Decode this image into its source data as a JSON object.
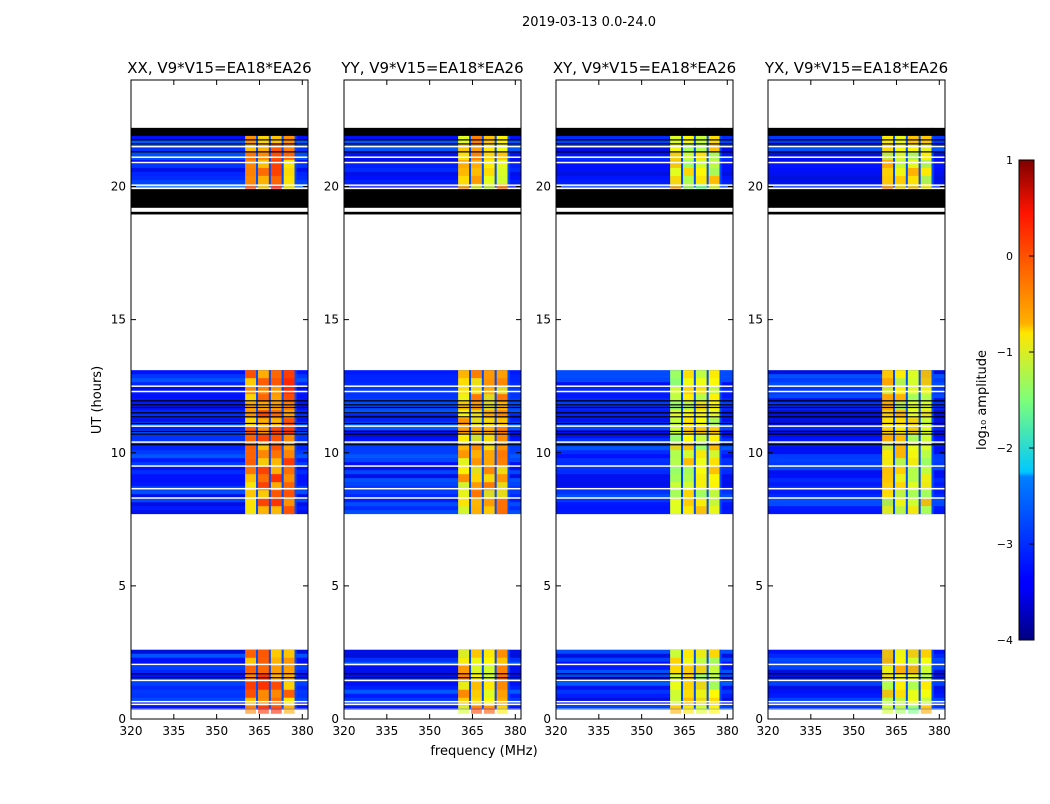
{
  "chart_data": {
    "type": "heatmap",
    "suptitle": "2019-03-13 0.0-24.0",
    "xlabel": "frequency (MHz)",
    "ylabel": "UT (hours)",
    "xlim": [
      320,
      382
    ],
    "ylim": [
      0,
      24
    ],
    "xticks": [
      320,
      335,
      350,
      365,
      380
    ],
    "yticks": [
      0,
      5,
      10,
      15,
      20
    ],
    "panels": [
      {
        "title": "XX, V9*V15=EA18*EA26",
        "band_freq": [
          360,
          378
        ],
        "band_level": -0.3
      },
      {
        "title": "YY, V9*V15=EA18*EA26",
        "band_freq": [
          360,
          378
        ],
        "band_level": -0.6
      },
      {
        "title": "XY, V9*V15=EA18*EA26",
        "band_freq": [
          360,
          378
        ],
        "band_level": -1.0
      },
      {
        "title": "YX, V9*V15=EA18*EA26",
        "band_freq": [
          360,
          378
        ],
        "band_level": -0.9
      }
    ],
    "data_segments": [
      {
        "t_start": 0.4,
        "t_end": 2.6
      },
      {
        "t_start": 7.7,
        "t_end": 13.1
      },
      {
        "t_start": 20.0,
        "t_end": 22.2
      }
    ],
    "flagged_blocks": [
      {
        "t_start": 18.95,
        "t_end": 19.05
      },
      {
        "t_start": 19.2,
        "t_end": 19.9
      },
      {
        "t_start": 21.9,
        "t_end": 22.2
      }
    ],
    "white_gap_lines": [
      0.55,
      0.65,
      1.45,
      2.05,
      8.3,
      8.65,
      9.5,
      10.4,
      11.0,
      12.3,
      12.5,
      20.05,
      20.9,
      21.1,
      21.5
    ],
    "black_gap_lines": [
      1.55,
      1.7,
      10.3,
      10.7,
      10.8,
      11.1,
      11.35,
      11.5,
      11.7,
      11.8,
      11.95,
      21.3,
      21.6,
      21.75
    ],
    "colorbar": {
      "label": "log₁₀ amplitude",
      "min": -4,
      "max": 1,
      "ticks": [
        1,
        0,
        -1,
        -2,
        -3,
        -4
      ],
      "colormap": "jet"
    },
    "background_level": -3.2
  }
}
